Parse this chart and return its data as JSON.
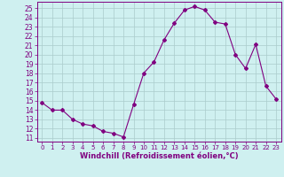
{
  "x": [
    0,
    1,
    2,
    3,
    4,
    5,
    6,
    7,
    8,
    9,
    10,
    11,
    12,
    13,
    14,
    15,
    16,
    17,
    18,
    19,
    20,
    21,
    22,
    23
  ],
  "y": [
    14.8,
    14.0,
    14.0,
    13.0,
    12.5,
    12.3,
    11.7,
    11.5,
    11.1,
    14.6,
    18.0,
    19.2,
    21.6,
    23.4,
    24.8,
    25.2,
    24.8,
    23.5,
    23.3,
    20.0,
    18.5,
    21.1,
    16.6,
    15.2
  ],
  "line_color": "#800080",
  "marker": "D",
  "marker_size": 2.0,
  "bg_color": "#cff0f0",
  "grid_color": "#aacccc",
  "xlabel": "Windchill (Refroidissement éolien,°C)",
  "xlabel_color": "#800080",
  "ylim": [
    10.6,
    25.7
  ],
  "yticks": [
    11,
    12,
    13,
    14,
    15,
    16,
    17,
    18,
    19,
    20,
    21,
    22,
    23,
    24,
    25
  ],
  "xlim": [
    -0.5,
    23.5
  ],
  "xticks": [
    0,
    1,
    2,
    3,
    4,
    5,
    6,
    7,
    8,
    9,
    10,
    11,
    12,
    13,
    14,
    15,
    16,
    17,
    18,
    19,
    20,
    21,
    22,
    23
  ],
  "tick_color": "#800080",
  "spine_color": "#800080",
  "tick_labelsize": 5.5,
  "xlabel_fontsize": 6.0
}
